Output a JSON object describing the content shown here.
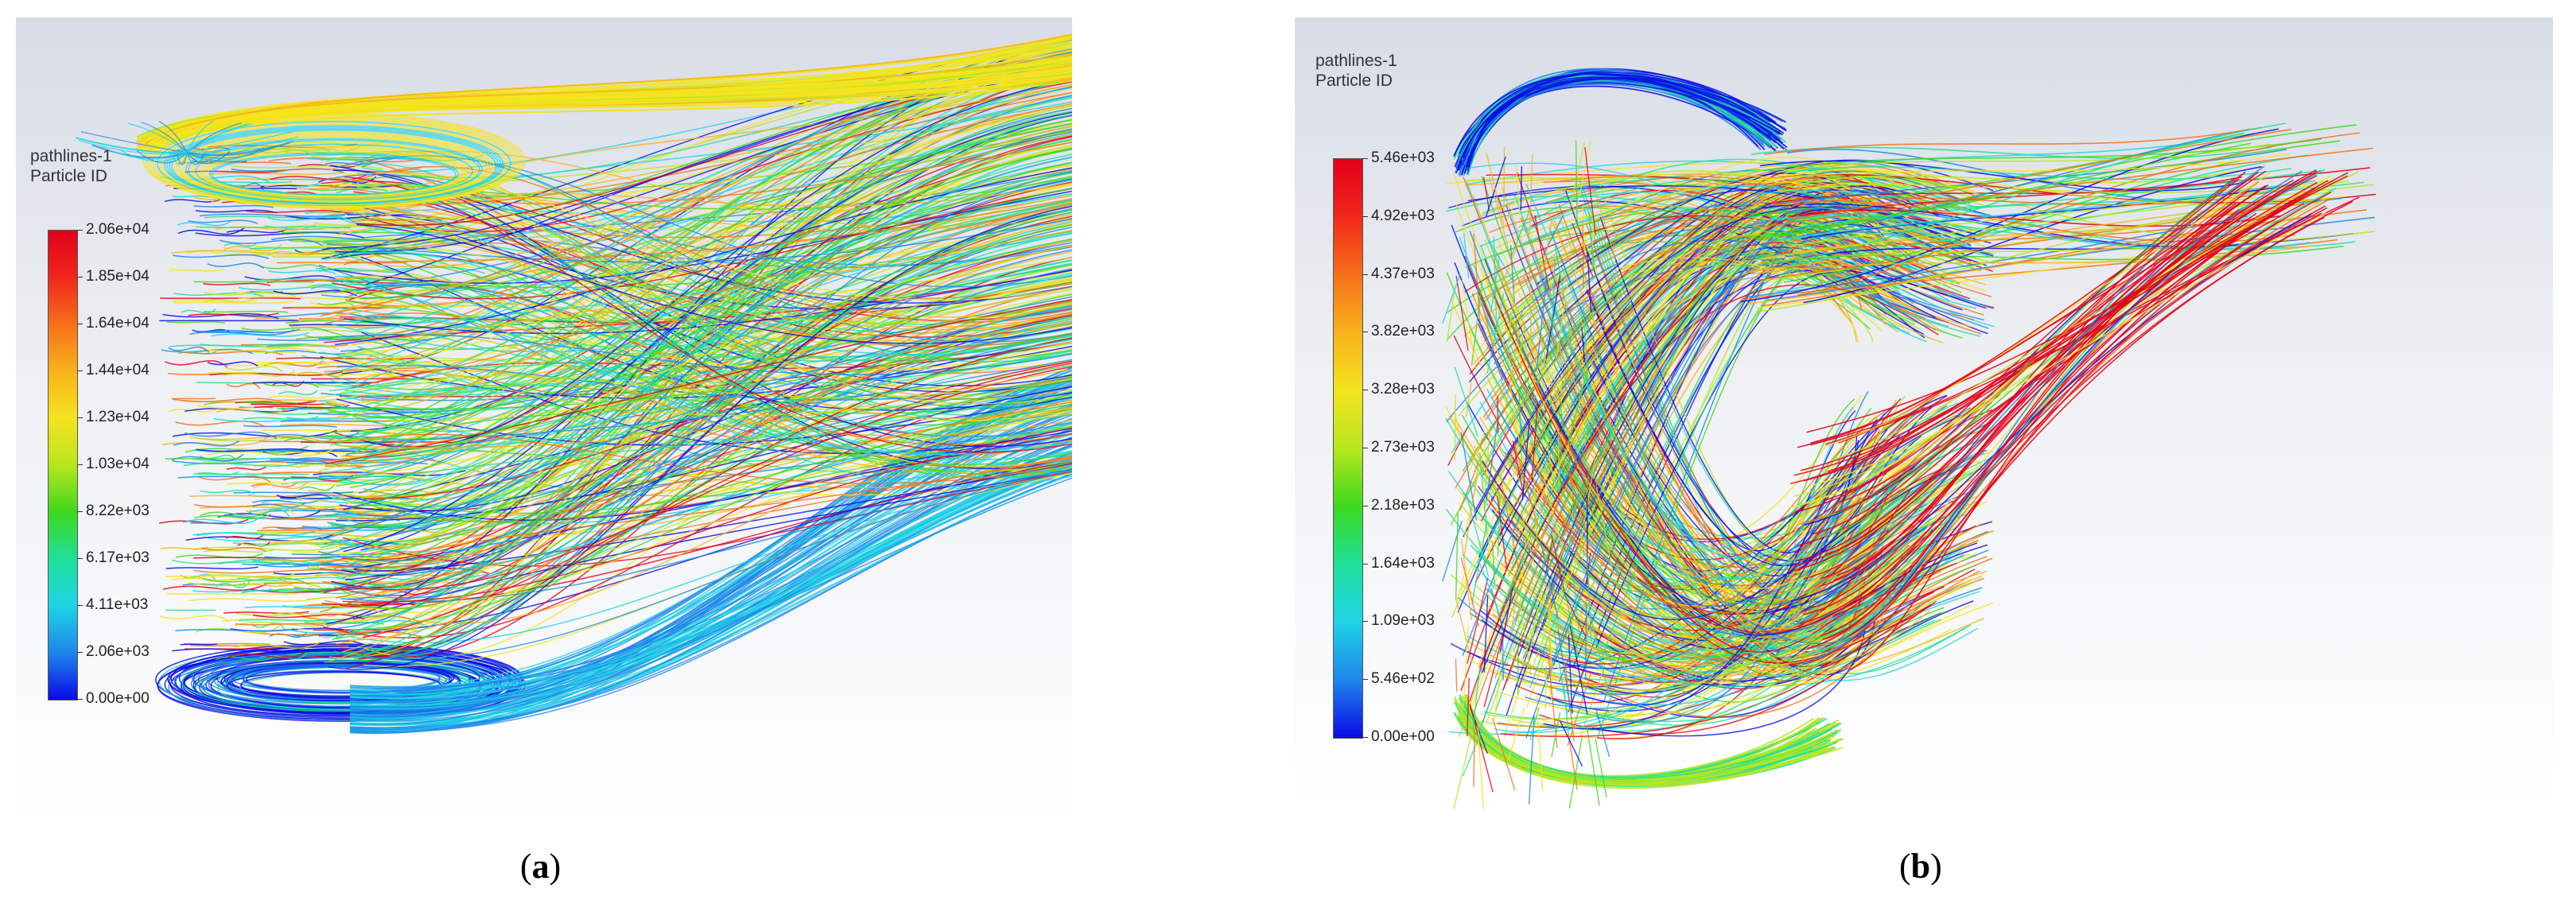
{
  "panels": [
    {
      "id": "a",
      "title_line1": "pathlines-1",
      "title_line2": "Particle ID",
      "colorbar_ticks": [
        "2.06e+04",
        "1.85e+04",
        "1.64e+04",
        "1.44e+04",
        "1.23e+04",
        "1.03e+04",
        "8.22e+03",
        "6.17e+03",
        "4.11e+03",
        "2.06e+03",
        "0.00e+00"
      ],
      "caption_open": "(",
      "caption_letter": "a",
      "caption_close": ")"
    },
    {
      "id": "b",
      "title_line1": "pathlines-1",
      "title_line2": "Particle ID",
      "colorbar_ticks": [
        "5.46e+03",
        "4.92e+03",
        "4.37e+03",
        "3.82e+03",
        "3.28e+03",
        "2.73e+03",
        "2.18e+03",
        "1.64e+03",
        "1.09e+03",
        "5.46e+02",
        "0.00e+00"
      ],
      "caption_open": "(",
      "caption_letter": "b",
      "caption_close": ")"
    }
  ],
  "colors": {
    "palette": [
      "#e2001a",
      "#f5701a",
      "#f8b21c",
      "#f4e41e",
      "#b8e61e",
      "#3ed81e",
      "#1ee09a",
      "#1ed3e6",
      "#1e86ea",
      "#0a0ae6"
    ]
  }
}
